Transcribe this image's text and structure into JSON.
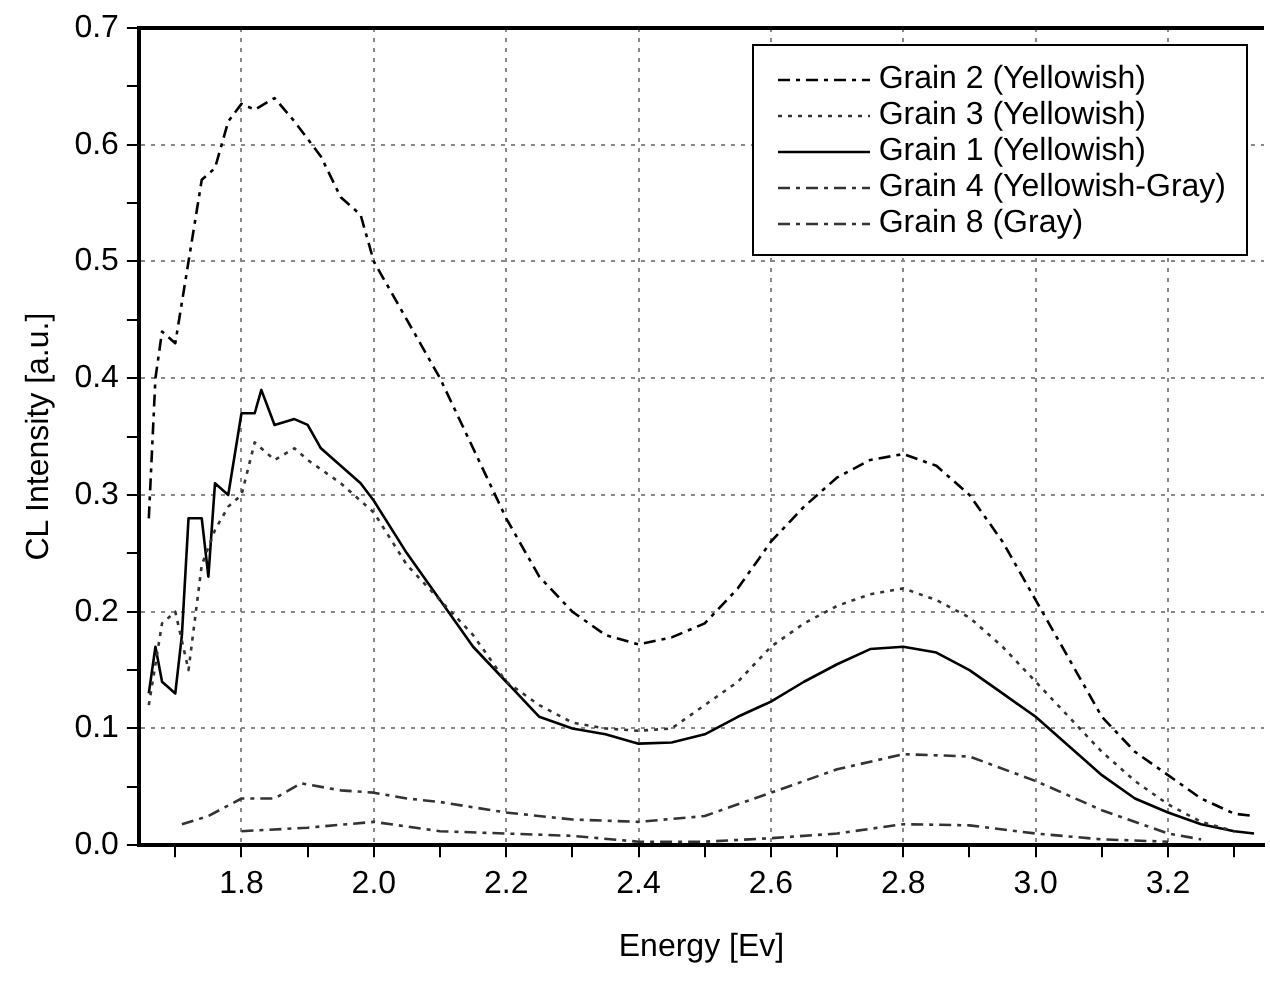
{
  "chart_data": {
    "type": "line",
    "xlabel": "Energy [Ev]",
    "ylabel": "CL Intensity [a.u.]",
    "xlim": [
      1.645,
      3.345
    ],
    "ylim": [
      0,
      0.7
    ],
    "xticks": [
      {
        "value": 1.7,
        "label": null
      },
      {
        "value": 1.8,
        "label": "1.8"
      },
      {
        "value": 1.9,
        "label": null
      },
      {
        "value": 2.0,
        "label": "2.0"
      },
      {
        "value": 2.1,
        "label": null
      },
      {
        "value": 2.2,
        "label": "2.2"
      },
      {
        "value": 2.3,
        "label": null
      },
      {
        "value": 2.4,
        "label": "2.4"
      },
      {
        "value": 2.5,
        "label": null
      },
      {
        "value": 2.6,
        "label": "2.6"
      },
      {
        "value": 2.7,
        "label": null
      },
      {
        "value": 2.8,
        "label": "2.8"
      },
      {
        "value": 2.9,
        "label": null
      },
      {
        "value": 3.0,
        "label": "3.0"
      },
      {
        "value": 3.1,
        "label": null
      },
      {
        "value": 3.2,
        "label": "3.2"
      },
      {
        "value": 3.3,
        "label": null
      }
    ],
    "yticks": [
      {
        "value": 0,
        "label": "0.0"
      },
      {
        "value": 0.05,
        "label": null
      },
      {
        "value": 0.1,
        "label": "0.1"
      },
      {
        "value": 0.15,
        "label": null
      },
      {
        "value": 0.2,
        "label": "0.2"
      },
      {
        "value": 0.25,
        "label": null
      },
      {
        "value": 0.3,
        "label": "0.3"
      },
      {
        "value": 0.35,
        "label": null
      },
      {
        "value": 0.4,
        "label": "0.4"
      },
      {
        "value": 0.45,
        "label": null
      },
      {
        "value": 0.5,
        "label": "0.5"
      },
      {
        "value": 0.55,
        "label": null
      },
      {
        "value": 0.6,
        "label": "0.6"
      },
      {
        "value": 0.65,
        "label": null
      },
      {
        "value": 0.7,
        "label": "0.7"
      }
    ],
    "grid": true,
    "legend": "top right",
    "marker": "none",
    "series": [
      {
        "name": "Grain 2 (Yellowish)",
        "color": "#000000",
        "line_style": "dashed",
        "x": [
          1.66,
          1.67,
          1.68,
          1.7,
          1.72,
          1.74,
          1.76,
          1.78,
          1.8,
          1.82,
          1.85,
          1.88,
          1.92,
          1.95,
          1.98,
          2.0,
          2.05,
          2.1,
          2.15,
          2.2,
          2.25,
          2.3,
          2.35,
          2.4,
          2.45,
          2.5,
          2.55,
          2.6,
          2.65,
          2.7,
          2.75,
          2.8,
          2.85,
          2.9,
          2.95,
          3.0,
          3.05,
          3.1,
          3.15,
          3.2,
          3.25,
          3.3,
          3.33
        ],
        "values": [
          0.28,
          0.4,
          0.44,
          0.43,
          0.5,
          0.57,
          0.58,
          0.62,
          0.635,
          0.63,
          0.64,
          0.62,
          0.59,
          0.555,
          0.54,
          0.5,
          0.45,
          0.4,
          0.34,
          0.28,
          0.23,
          0.2,
          0.18,
          0.172,
          0.178,
          0.19,
          0.22,
          0.26,
          0.29,
          0.315,
          0.33,
          0.335,
          0.325,
          0.3,
          0.26,
          0.21,
          0.16,
          0.11,
          0.08,
          0.06,
          0.04,
          0.027,
          0.025
        ]
      },
      {
        "name": "Grain 3 (Yellowish)",
        "color": "#333333",
        "line_style": "dotted",
        "x": [
          1.66,
          1.68,
          1.7,
          1.72,
          1.74,
          1.76,
          1.78,
          1.8,
          1.82,
          1.85,
          1.88,
          1.9,
          1.95,
          2.0,
          2.05,
          2.1,
          2.15,
          2.2,
          2.25,
          2.3,
          2.35,
          2.4,
          2.45,
          2.5,
          2.55,
          2.6,
          2.65,
          2.7,
          2.75,
          2.8,
          2.85,
          2.9,
          2.95,
          3.0,
          3.05,
          3.1,
          3.15,
          3.2,
          3.25,
          3.3
        ],
        "values": [
          0.12,
          0.19,
          0.2,
          0.15,
          0.24,
          0.27,
          0.29,
          0.3,
          0.345,
          0.33,
          0.34,
          0.33,
          0.31,
          0.285,
          0.24,
          0.21,
          0.18,
          0.14,
          0.12,
          0.105,
          0.1,
          0.098,
          0.1,
          0.12,
          0.14,
          0.17,
          0.19,
          0.205,
          0.215,
          0.22,
          0.21,
          0.195,
          0.17,
          0.14,
          0.11,
          0.08,
          0.055,
          0.035,
          0.02,
          0.012
        ]
      },
      {
        "name": "Grain 1 (Yellowish)",
        "color": "#000000",
        "line_style": "solid",
        "x": [
          1.66,
          1.67,
          1.68,
          1.7,
          1.71,
          1.72,
          1.74,
          1.75,
          1.76,
          1.78,
          1.8,
          1.82,
          1.83,
          1.85,
          1.88,
          1.9,
          1.92,
          1.95,
          1.98,
          2.0,
          2.05,
          2.1,
          2.15,
          2.2,
          2.25,
          2.3,
          2.35,
          2.4,
          2.45,
          2.5,
          2.55,
          2.6,
          2.65,
          2.7,
          2.75,
          2.8,
          2.85,
          2.9,
          2.95,
          3.0,
          3.05,
          3.1,
          3.15,
          3.2,
          3.25,
          3.3,
          3.33
        ],
        "values": [
          0.13,
          0.17,
          0.14,
          0.13,
          0.18,
          0.28,
          0.28,
          0.23,
          0.31,
          0.3,
          0.37,
          0.37,
          0.39,
          0.36,
          0.365,
          0.36,
          0.34,
          0.325,
          0.31,
          0.295,
          0.25,
          0.21,
          0.17,
          0.14,
          0.11,
          0.1,
          0.095,
          0.087,
          0.088,
          0.095,
          0.11,
          0.123,
          0.14,
          0.155,
          0.168,
          0.17,
          0.165,
          0.15,
          0.13,
          0.11,
          0.085,
          0.06,
          0.04,
          0.028,
          0.018,
          0.012,
          0.01
        ]
      },
      {
        "name": "Grain 4 (Yellowish-Gray)",
        "color": "#333333",
        "line_style": "dashed",
        "x": [
          1.71,
          1.75,
          1.8,
          1.85,
          1.89,
          1.95,
          2.0,
          2.05,
          2.1,
          2.2,
          2.3,
          2.4,
          2.5,
          2.6,
          2.7,
          2.8,
          2.9,
          3.0,
          3.1,
          3.2,
          3.25
        ],
        "values": [
          0.018,
          0.025,
          0.04,
          0.04,
          0.053,
          0.047,
          0.045,
          0.04,
          0.037,
          0.028,
          0.022,
          0.02,
          0.025,
          0.045,
          0.065,
          0.078,
          0.076,
          0.055,
          0.03,
          0.01,
          0.005
        ]
      },
      {
        "name": "Grain 8 (Gray)",
        "color": "#333333",
        "line_style": "dashed",
        "x": [
          1.8,
          1.9,
          2.0,
          2.1,
          2.2,
          2.3,
          2.4,
          2.5,
          2.6,
          2.7,
          2.8,
          2.9,
          3.0,
          3.1,
          3.2
        ],
        "values": [
          0.012,
          0.015,
          0.02,
          0.012,
          0.01,
          0.008,
          0.003,
          0.003,
          0.006,
          0.01,
          0.018,
          0.017,
          0.01,
          0.005,
          0.003
        ]
      }
    ]
  }
}
